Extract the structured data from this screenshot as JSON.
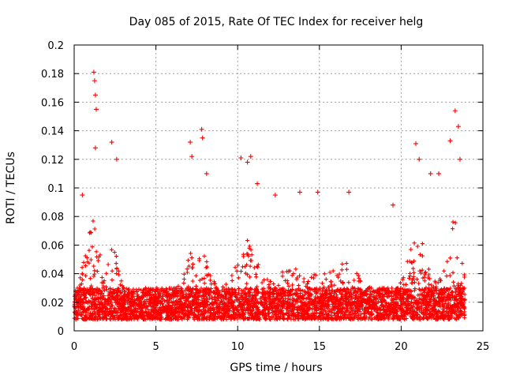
{
  "chart_data": {
    "type": "scatter",
    "title": "Day 085 of 2015, Rate Of TEC Index for receiver helg",
    "xlabel": "GPS time / hours",
    "ylabel": "ROTI / TECUs",
    "xlim": [
      0,
      25
    ],
    "ylim": [
      0,
      0.2
    ],
    "xticks": [
      0,
      5,
      10,
      15,
      20,
      25
    ],
    "xtick_labels": [
      "0",
      "5",
      "10",
      "15",
      "20",
      "25"
    ],
    "yticks": [
      0,
      0.02,
      0.04,
      0.06,
      0.08,
      0.1,
      0.12,
      0.14,
      0.16,
      0.18,
      0.2
    ],
    "ytick_labels": [
      "0",
      "0.02",
      "0.04",
      "0.06",
      "0.08",
      "0.1",
      "0.12",
      "0.14",
      "0.16",
      "0.18",
      "0.2"
    ],
    "grid": true,
    "marker": "plus",
    "color": "#ff0000",
    "x_range_observed": [
      0,
      23.9
    ],
    "background_band": [
      0.008,
      0.03
    ],
    "notable_peaks": [
      {
        "x": 1.2,
        "y": 0.181
      },
      {
        "x": 1.25,
        "y": 0.175
      },
      {
        "x": 1.3,
        "y": 0.165
      },
      {
        "x": 1.35,
        "y": 0.155
      },
      {
        "x": 1.3,
        "y": 0.128
      },
      {
        "x": 2.3,
        "y": 0.132
      },
      {
        "x": 2.6,
        "y": 0.12
      },
      {
        "x": 0.5,
        "y": 0.095
      },
      {
        "x": 7.1,
        "y": 0.132
      },
      {
        "x": 7.2,
        "y": 0.122
      },
      {
        "x": 7.8,
        "y": 0.141
      },
      {
        "x": 7.85,
        "y": 0.135
      },
      {
        "x": 8.1,
        "y": 0.11
      },
      {
        "x": 10.2,
        "y": 0.121
      },
      {
        "x": 10.6,
        "y": 0.118
      },
      {
        "x": 10.8,
        "y": 0.122
      },
      {
        "x": 11.2,
        "y": 0.103
      },
      {
        "x": 12.3,
        "y": 0.095
      },
      {
        "x": 13.8,
        "y": 0.097
      },
      {
        "x": 14.9,
        "y": 0.097
      },
      {
        "x": 16.8,
        "y": 0.097
      },
      {
        "x": 19.5,
        "y": 0.088
      },
      {
        "x": 20.9,
        "y": 0.131
      },
      {
        "x": 21.1,
        "y": 0.12
      },
      {
        "x": 21.8,
        "y": 0.11
      },
      {
        "x": 22.3,
        "y": 0.11
      },
      {
        "x": 23.0,
        "y": 0.133
      },
      {
        "x": 23.3,
        "y": 0.154
      },
      {
        "x": 23.5,
        "y": 0.143
      },
      {
        "x": 23.6,
        "y": 0.12
      }
    ]
  }
}
